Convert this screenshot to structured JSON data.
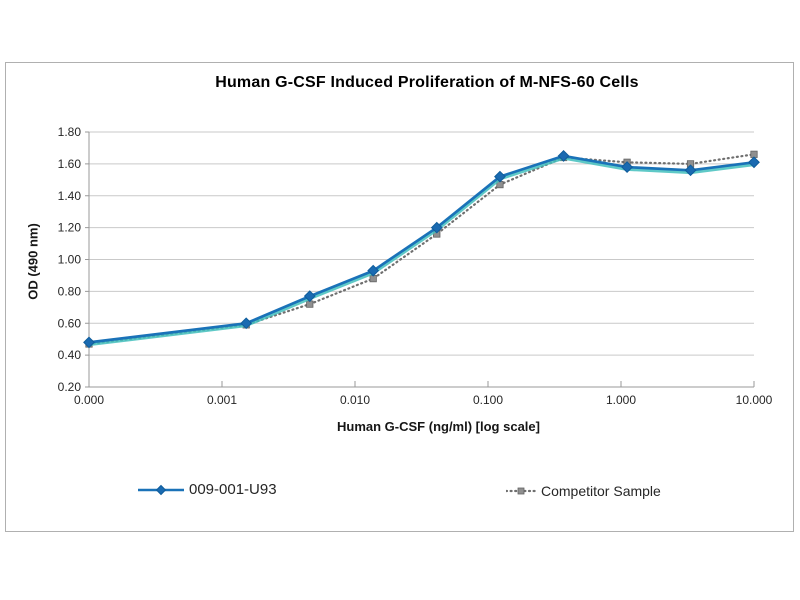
{
  "chart_data": {
    "type": "line",
    "title": "Human G-CSF Induced Proliferation of M-NFS-60 Cells",
    "xlabel": "Human G-CSF (ng/ml) [log scale]",
    "ylabel": "OD (490 nm)",
    "x_scale": "log",
    "x_axis_min": 0.0001,
    "x_axis_max": 10,
    "ylim": [
      0.2,
      1.8
    ],
    "grid": "horizontal",
    "legend_position": "bottom",
    "x_ticks": [
      {
        "label": "0.000",
        "value": 0
      },
      {
        "label": "0.001",
        "value": 0.001
      },
      {
        "label": "0.010",
        "value": 0.01
      },
      {
        "label": "0.100",
        "value": 0.1
      },
      {
        "label": "1.000",
        "value": 1
      },
      {
        "label": "10.000",
        "value": 10
      }
    ],
    "y_ticks": [
      {
        "label": "0.20",
        "value": 0.2
      },
      {
        "label": "0.40",
        "value": 0.4
      },
      {
        "label": "0.60",
        "value": 0.6
      },
      {
        "label": "0.80",
        "value": 0.8
      },
      {
        "label": "1.00",
        "value": 1.0
      },
      {
        "label": "1.20",
        "value": 1.2
      },
      {
        "label": "1.40",
        "value": 1.4
      },
      {
        "label": "1.60",
        "value": 1.6
      },
      {
        "label": "1.80",
        "value": 1.8
      }
    ],
    "x": [
      0,
      0.00152,
      0.00457,
      0.0137,
      0.0412,
      0.123,
      0.37,
      1.111,
      3.333,
      10
    ],
    "series": [
      {
        "name": "009-001-U93",
        "color": "#1a72b8",
        "glow_color": "#43c0bd",
        "marker": "diamond",
        "marker_color": "#1a6ab1",
        "marker_edge": "#0f5d9b",
        "line_style": "solid",
        "values": [
          0.48,
          0.6,
          0.77,
          0.93,
          1.2,
          1.52,
          1.65,
          1.58,
          1.56,
          1.61
        ]
      },
      {
        "name": "Competitor Sample",
        "color": "#6f6f6f",
        "marker": "square",
        "marker_color": "#8f8f8f",
        "marker_edge": "#636363",
        "line_style": "dotted",
        "values": [
          0.47,
          0.59,
          0.72,
          0.88,
          1.16,
          1.47,
          1.64,
          1.61,
          1.6,
          1.66
        ]
      }
    ],
    "colors": {
      "grid": "#c9c9c9",
      "axis": "#999999",
      "tick_text": "#262626",
      "border": "#b0b0b0",
      "background": "#ffffff"
    }
  }
}
